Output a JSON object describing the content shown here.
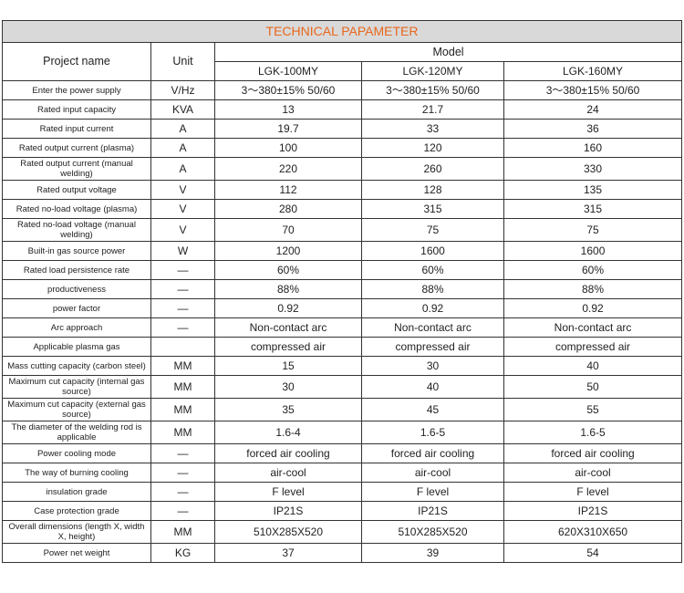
{
  "title": "TECHNICAL PAPAMETER",
  "headers": {
    "project": "Project name",
    "unit": "Unit",
    "model": "Model",
    "models": [
      "LGK-100MY",
      "LGK-120MY",
      "LGK-160MY"
    ]
  },
  "rows": [
    {
      "name": "Enter the power supply",
      "unit": "V/Hz",
      "values": [
        "3～380±15% 50/60",
        "3～380±15% 50/60",
        "3～380±15% 50/60"
      ]
    },
    {
      "name": "Rated input capacity",
      "unit": "KVA",
      "values": [
        "13",
        "21.7",
        "24"
      ]
    },
    {
      "name": "Rated input current",
      "unit": "A",
      "values": [
        "19.7",
        "33",
        "36"
      ]
    },
    {
      "name": "Rated output current (plasma)",
      "unit": "A",
      "values": [
        "100",
        "120",
        "160"
      ]
    },
    {
      "name": "Rated output current (manual welding)",
      "unit": "A",
      "values": [
        "220",
        "260",
        "330"
      ],
      "tall": true
    },
    {
      "name": "Rated output voltage",
      "unit": "V",
      "values": [
        "112",
        "128",
        "135"
      ]
    },
    {
      "name": "Rated no-load voltage (plasma)",
      "unit": "V",
      "values": [
        "280",
        "315",
        "315"
      ]
    },
    {
      "name": "Rated no-load voltage (manual welding)",
      "unit": "V",
      "values": [
        "70",
        "75",
        "75"
      ],
      "tall": true
    },
    {
      "name": "Built-in gas source power",
      "unit": "W",
      "values": [
        "1200",
        "1600",
        "1600"
      ]
    },
    {
      "name": "Rated load persistence rate",
      "unit": "—",
      "values": [
        "60%",
        "60%",
        "60%"
      ]
    },
    {
      "name": "productiveness",
      "unit": "—",
      "values": [
        "88%",
        "88%",
        "88%"
      ]
    },
    {
      "name": "power factor",
      "unit": "—",
      "values": [
        "0.92",
        "0.92",
        "0.92"
      ]
    },
    {
      "name": "Arc approach",
      "unit": "—",
      "values": [
        "Non-contact arc",
        "Non-contact arc",
        "Non-contact arc"
      ]
    },
    {
      "name": "Applicable plasma gas",
      "unit": "",
      "values": [
        "compressed air",
        "compressed air",
        "compressed air"
      ]
    },
    {
      "name": "Mass cutting capacity (carbon steel)",
      "unit": "MM",
      "values": [
        "15",
        "30",
        "40"
      ]
    },
    {
      "name": "Maximum cut capacity (internal gas source)",
      "unit": "MM",
      "values": [
        "30",
        "40",
        "50"
      ],
      "tall": true
    },
    {
      "name": "Maximum cut capacity (external gas source)",
      "unit": "MM",
      "values": [
        "35",
        "45",
        "55"
      ],
      "tall": true
    },
    {
      "name": "The diameter of the welding rod is applicable",
      "unit": "MM",
      "values": [
        "1.6-4",
        "1.6-5",
        "1.6-5"
      ],
      "tall": true
    },
    {
      "name": "Power cooling mode",
      "unit": "—",
      "values": [
        "forced air cooling",
        "forced air cooling",
        "forced air cooling"
      ]
    },
    {
      "name": "The way of burning cooling",
      "unit": "—",
      "values": [
        "air-cool",
        "air-cool",
        "air-cool"
      ]
    },
    {
      "name": "insulation grade",
      "unit": "—",
      "values": [
        "F level",
        "F level",
        "F level"
      ]
    },
    {
      "name": "Case protection grade",
      "unit": "—",
      "values": [
        "IP21S",
        "IP21S",
        "IP21S"
      ]
    },
    {
      "name": "Overall dimensions (length X, width X, height)",
      "unit": "MM",
      "values": [
        "510X285X520",
        "510X285X520",
        "620X310X650"
      ],
      "tall": true
    },
    {
      "name": "Power net weight",
      "unit": "KG",
      "values": [
        "37",
        "39",
        "54"
      ]
    }
  ],
  "colors": {
    "title_text": "#e8671c",
    "title_bg": "#d9d9d9"
  }
}
